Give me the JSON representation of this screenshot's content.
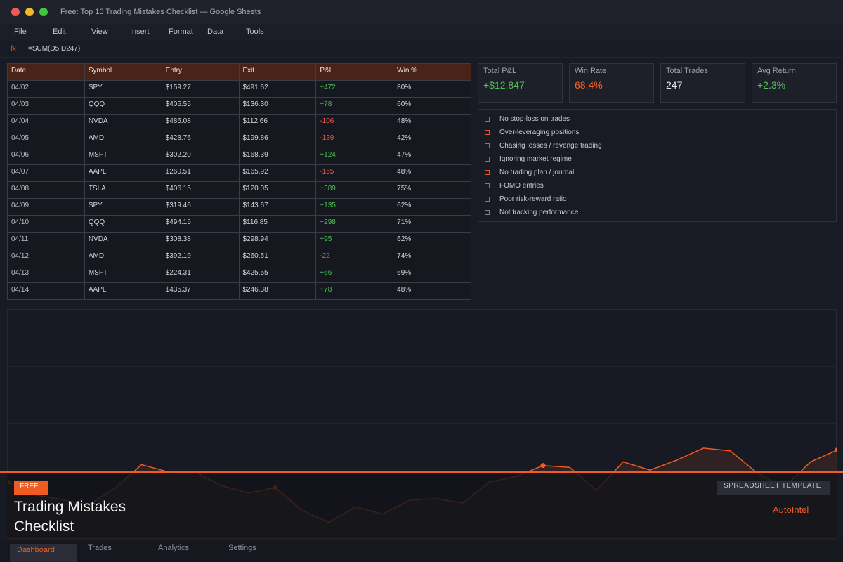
{
  "window": {
    "title": "Free: Top 10 Trading Mistakes Checklist — Google Sheets"
  },
  "menu": [
    "File",
    "Edit",
    "View",
    "Insert",
    "Format",
    "Data",
    "Tools"
  ],
  "formula_bar": {
    "fx_label": "fx",
    "formula": "=SUM(D5:D247)"
  },
  "table": {
    "headers": [
      "Date",
      "Symbol",
      "Entry",
      "Exit",
      "P&L",
      "Win %"
    ],
    "rows": [
      [
        "04/02",
        "SPY",
        "$159.27",
        "$491.62",
        "+472",
        "80%"
      ],
      [
        "04/03",
        "QQQ",
        "$405.55",
        "$136.30",
        "+78",
        "60%"
      ],
      [
        "04/04",
        "NVDA",
        "$486.08",
        "$112.66",
        "-106",
        "48%"
      ],
      [
        "04/05",
        "AMD",
        "$428.76",
        "$199.86",
        "-139",
        "42%"
      ],
      [
        "04/06",
        "MSFT",
        "$302.20",
        "$168.39",
        "+124",
        "47%"
      ],
      [
        "04/07",
        "AAPL",
        "$260.51",
        "$165.92",
        "-155",
        "48%"
      ],
      [
        "04/08",
        "TSLA",
        "$406.15",
        "$120.05",
        "+389",
        "75%"
      ],
      [
        "04/09",
        "SPY",
        "$319.46",
        "$143.67",
        "+135",
        "62%"
      ],
      [
        "04/10",
        "QQQ",
        "$494.15",
        "$116.85",
        "+298",
        "71%"
      ],
      [
        "04/11",
        "NVDA",
        "$308.38",
        "$298.94",
        "+95",
        "62%"
      ],
      [
        "04/12",
        "AMD",
        "$392.19",
        "$260.51",
        "-22",
        "74%"
      ],
      [
        "04/13",
        "MSFT",
        "$224.31",
        "$425.55",
        "+66",
        "69%"
      ],
      [
        "04/14",
        "AAPL",
        "$435.37",
        "$246.38",
        "+78",
        "48%"
      ]
    ]
  },
  "kpis": [
    {
      "label": "Total P&L",
      "value": "+$12,847",
      "color": "#4fc15a"
    },
    {
      "label": "Win Rate",
      "value": "68.4%",
      "color": "#f0612d"
    },
    {
      "label": "Total Trades",
      "value": "247",
      "color": "#e4e6ea"
    },
    {
      "label": "Avg Return",
      "value": "+2.3%",
      "color": "#4fc15a"
    }
  ],
  "checklist": [
    {
      "label": "No stop-loss on trades",
      "checked_color": "#e4552a"
    },
    {
      "label": "Over-leveraging positions",
      "checked_color": "#e4552a"
    },
    {
      "label": "Chasing losses / revenge trading",
      "checked_color": "#e4552a"
    },
    {
      "label": "Ignoring market regime",
      "checked_color": "#e4552a"
    },
    {
      "label": "No trading plan / journal",
      "checked_color": "#e4552a"
    },
    {
      "label": "FOMO entries",
      "checked_color": "#e4552a"
    },
    {
      "label": "Poor risk-reward ratio",
      "checked_color": "#e4552a"
    },
    {
      "label": "Not tracking performance",
      "checked_color": "#7d8089"
    }
  ],
  "chart_data": {
    "type": "area",
    "values": [
      62,
      48,
      43,
      37,
      55,
      81,
      73,
      73,
      58,
      50,
      56,
      31,
      18,
      35,
      27,
      42,
      44,
      39,
      62,
      68,
      80,
      78,
      53,
      84,
      75,
      86,
      99,
      96,
      72,
      56,
      84,
      97
    ],
    "ylim": [
      0,
      250
    ],
    "marked_indices": [
      0,
      10,
      20,
      31
    ],
    "line_color": "#f05a23",
    "fill_color": "#3a2424"
  },
  "banner": {
    "badge": "FREE",
    "title_line1": "Trading Mistakes",
    "title_line2": "Checklist",
    "template_label": "SPREADSHEET TEMPLATE",
    "brand": "AutoIntel"
  },
  "tabs": [
    "Dashboard",
    "Trades",
    "Analytics",
    "Settings"
  ]
}
